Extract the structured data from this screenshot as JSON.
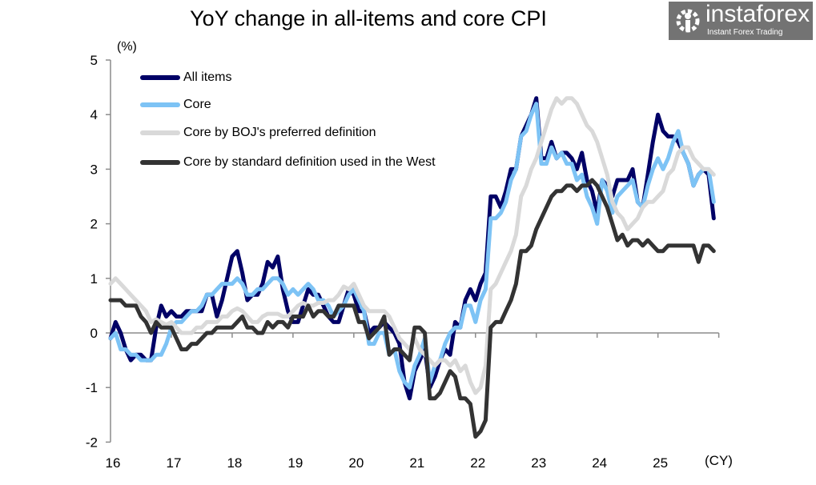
{
  "chart_data": {
    "type": "line",
    "title": "YoY change in all-items and core CPI",
    "ylabel": "(%)",
    "xlabel": "(CY)",
    "ylim": [
      -2,
      5
    ],
    "yticks": [
      -2,
      -1,
      0,
      1,
      2,
      3,
      4,
      5
    ],
    "xticks": [
      "16",
      "17",
      "18",
      "19",
      "20",
      "21",
      "22",
      "23",
      "24",
      "25"
    ],
    "x_start": "2016-01",
    "x_end": "2025-12",
    "frequency": "monthly",
    "grid": false,
    "legend_position": "top-left",
    "series": [
      {
        "name": "All items",
        "color": "#000066",
        "values": [
          -0.1,
          0.2,
          0.0,
          -0.3,
          -0.5,
          -0.4,
          -0.4,
          -0.5,
          -0.5,
          0.1,
          0.5,
          0.3,
          0.4,
          0.3,
          0.3,
          0.4,
          0.4,
          0.4,
          0.4,
          0.7,
          0.7,
          0.3,
          0.6,
          1.0,
          1.4,
          1.5,
          1.1,
          0.6,
          0.7,
          0.7,
          0.9,
          1.3,
          1.2,
          1.4,
          0.8,
          0.4,
          0.2,
          0.2,
          0.5,
          0.8,
          0.7,
          0.7,
          0.5,
          0.3,
          0.2,
          0.2,
          0.5,
          0.8,
          0.7,
          0.4,
          0.4,
          0.0,
          0.1,
          0.1,
          0.2,
          0.1,
          0.0,
          -0.2,
          -0.9,
          -1.2,
          -0.7,
          -0.5,
          -0.3,
          -1.0,
          -0.8,
          -0.5,
          -0.3,
          -0.4,
          0.2,
          0.1,
          0.6,
          0.8,
          0.6,
          0.9,
          1.1,
          2.5,
          2.5,
          2.3,
          2.6,
          3.0,
          3.0,
          3.6,
          3.8,
          4.0,
          4.3,
          3.2,
          3.2,
          3.5,
          3.2,
          3.3,
          3.3,
          3.2,
          3.0,
          3.3,
          2.8,
          2.6,
          2.2,
          2.8,
          2.7,
          2.5,
          2.8,
          2.8,
          2.8,
          3.0,
          2.4,
          2.3,
          2.9,
          3.5,
          4.0,
          3.7,
          3.6,
          3.6,
          3.5,
          3.3,
          3.1,
          2.7,
          2.9,
          3.0,
          2.9,
          2.1
        ]
      },
      {
        "name": "Core",
        "color": "#7dc3f5",
        "values": [
          -0.1,
          0.0,
          -0.3,
          -0.3,
          -0.4,
          -0.4,
          -0.5,
          -0.5,
          -0.5,
          -0.4,
          -0.4,
          -0.2,
          0.1,
          0.2,
          0.2,
          0.3,
          0.4,
          0.4,
          0.5,
          0.7,
          0.7,
          0.8,
          0.9,
          0.9,
          0.9,
          1.0,
          0.9,
          0.7,
          0.7,
          0.8,
          0.8,
          0.9,
          1.0,
          1.0,
          0.9,
          0.7,
          0.8,
          0.7,
          0.8,
          0.9,
          0.8,
          0.6,
          0.6,
          0.5,
          0.3,
          0.4,
          0.5,
          0.7,
          0.8,
          0.6,
          0.4,
          -0.2,
          -0.2,
          0.0,
          0.0,
          -0.4,
          -0.3,
          -0.7,
          -0.9,
          -1.0,
          -0.6,
          -0.4,
          -0.1,
          -0.9,
          -0.6,
          -0.5,
          -0.2,
          0.0,
          0.1,
          0.1,
          0.5,
          0.5,
          0.2,
          0.6,
          0.8,
          2.1,
          2.1,
          2.2,
          2.4,
          2.8,
          3.0,
          3.6,
          3.7,
          4.0,
          4.2,
          3.1,
          3.1,
          3.4,
          3.2,
          3.3,
          3.1,
          3.1,
          2.8,
          2.9,
          2.5,
          2.3,
          2.0,
          2.8,
          2.6,
          2.2,
          2.5,
          2.6,
          2.7,
          2.8,
          2.4,
          2.3,
          2.7,
          3.0,
          3.2,
          3.0,
          3.2,
          3.5,
          3.7,
          3.3,
          3.1,
          2.7,
          2.9,
          3.0,
          3.0,
          2.4
        ]
      },
      {
        "name": "Core by BOJ's preferred definition",
        "color": "#d9d9d9",
        "values": [
          0.9,
          1.0,
          0.9,
          0.8,
          0.7,
          0.6,
          0.5,
          0.4,
          0.2,
          0.25,
          0.2,
          0.15,
          0.2,
          0.1,
          0.0,
          0.0,
          0.0,
          0.1,
          0.1,
          0.2,
          0.2,
          0.2,
          0.3,
          0.3,
          0.4,
          0.45,
          0.4,
          0.3,
          0.2,
          0.2,
          0.3,
          0.35,
          0.35,
          0.35,
          0.3,
          0.3,
          0.4,
          0.5,
          0.55,
          0.5,
          0.5,
          0.55,
          0.55,
          0.6,
          0.6,
          0.7,
          0.85,
          0.8,
          0.9,
          0.7,
          0.5,
          0.4,
          0.4,
          0.4,
          0.4,
          0.3,
          0.1,
          -0.1,
          -0.2,
          -0.3,
          -0.1,
          -0.3,
          -0.4,
          -0.5,
          -0.6,
          -0.5,
          -0.5,
          -0.6,
          -0.5,
          -0.7,
          -0.6,
          -0.9,
          -1.1,
          -1.0,
          -0.6,
          0.8,
          0.9,
          1.1,
          1.3,
          1.5,
          1.8,
          2.5,
          2.7,
          3.0,
          3.2,
          3.5,
          3.8,
          4.1,
          4.3,
          4.2,
          4.3,
          4.3,
          4.2,
          4.0,
          3.8,
          3.7,
          3.5,
          3.2,
          2.9,
          2.4,
          2.2,
          2.1,
          1.9,
          2.0,
          2.1,
          2.3,
          2.4,
          2.4,
          2.5,
          2.6,
          2.9,
          3.0,
          3.3,
          3.4,
          3.4,
          3.2,
          3.1,
          3.0,
          3.0,
          2.9
        ]
      },
      {
        "name": "Core by standard definition used in the West",
        "color": "#333333",
        "values": [
          0.6,
          0.6,
          0.6,
          0.5,
          0.5,
          0.5,
          0.3,
          0.2,
          0.0,
          0.2,
          0.1,
          0.1,
          0.1,
          -0.1,
          -0.3,
          -0.3,
          -0.2,
          -0.2,
          -0.1,
          0.0,
          0.0,
          0.1,
          0.1,
          0.1,
          0.1,
          0.2,
          0.3,
          0.1,
          0.1,
          0.0,
          0.0,
          0.2,
          0.1,
          0.2,
          0.2,
          0.1,
          0.3,
          0.3,
          0.3,
          0.5,
          0.3,
          0.4,
          0.4,
          0.3,
          0.3,
          0.5,
          0.5,
          0.5,
          0.5,
          0.2,
          0.2,
          -0.1,
          0.0,
          0.1,
          0.3,
          -0.4,
          -0.3,
          -0.3,
          -0.4,
          -0.5,
          0.1,
          0.1,
          0.0,
          -1.2,
          -1.2,
          -1.1,
          -0.9,
          -0.7,
          -0.8,
          -1.2,
          -1.2,
          -1.3,
          -1.9,
          -1.8,
          -1.6,
          0.1,
          0.2,
          0.2,
          0.4,
          0.6,
          0.9,
          1.5,
          1.5,
          1.6,
          1.9,
          2.1,
          2.3,
          2.5,
          2.6,
          2.6,
          2.7,
          2.7,
          2.6,
          2.7,
          2.7,
          2.8,
          2.7,
          2.5,
          2.3,
          2.0,
          1.7,
          1.8,
          1.6,
          1.7,
          1.7,
          1.6,
          1.7,
          1.6,
          1.5,
          1.5,
          1.6,
          1.6,
          1.6,
          1.6,
          1.6,
          1.6,
          1.3,
          1.6,
          1.6,
          1.5
        ]
      }
    ]
  },
  "watermark": {
    "brand": "instaforex",
    "tagline": "Instant Forex Trading"
  }
}
